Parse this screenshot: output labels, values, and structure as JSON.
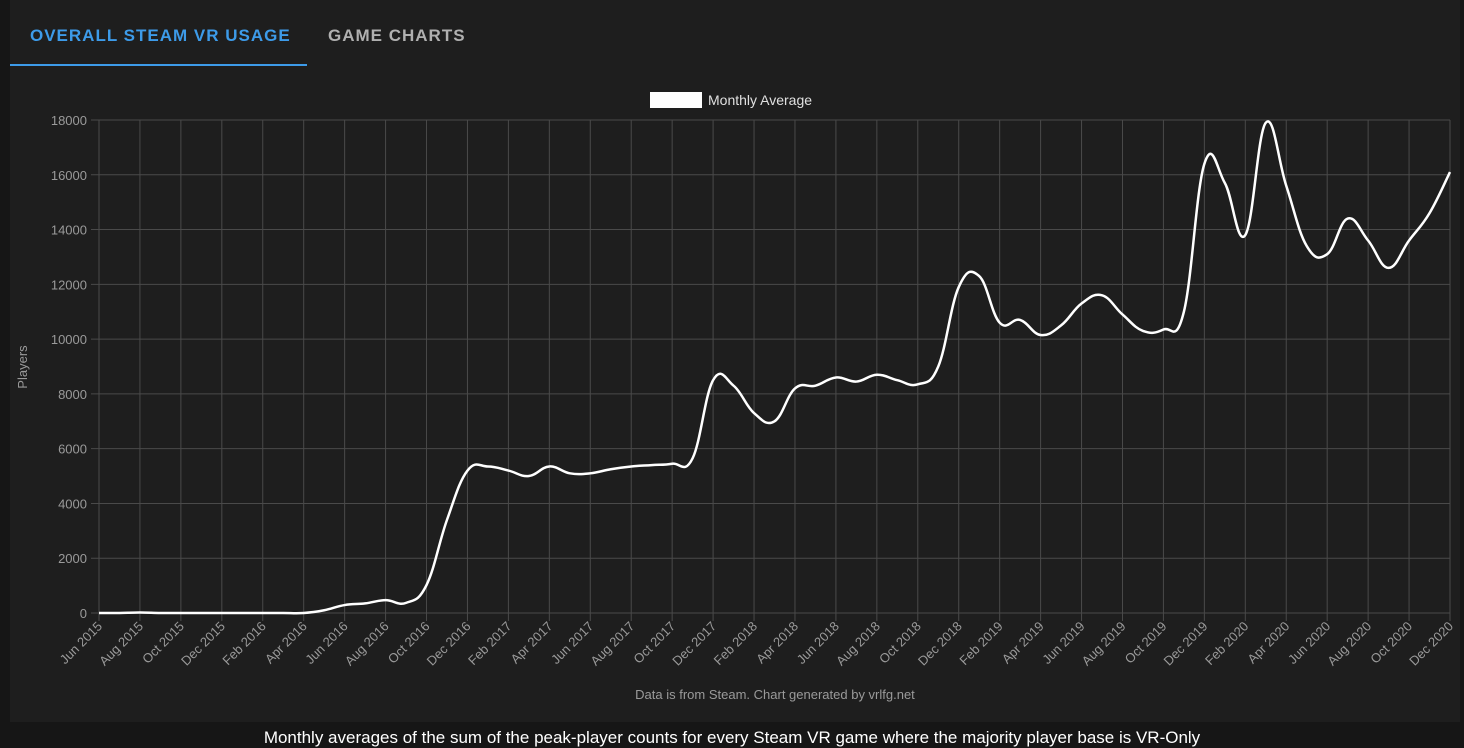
{
  "tabs": [
    "OVERALL STEAM VR USAGE",
    "GAME CHARTS"
  ],
  "caption": "Monthly averages of the sum of the peak-player counts for every Steam VR game where the majority player base is VR-Only",
  "chart_data": {
    "type": "line",
    "y_label": "Players",
    "footnote": "Data is from Steam.  Chart generated by vrlfg.net",
    "x": [
      "Jun 2015",
      null,
      "Aug 2015",
      null,
      "Oct 2015",
      null,
      "Dec 2015",
      null,
      "Feb 2016",
      null,
      "Apr 2016",
      null,
      "Jun 2016",
      null,
      "Aug 2016",
      null,
      "Oct 2016",
      null,
      "Dec 2016",
      null,
      "Feb 2017",
      null,
      "Apr 2017",
      null,
      "Jun 2017",
      null,
      "Aug 2017",
      null,
      "Oct 2017",
      null,
      "Dec 2017",
      null,
      "Feb 2018",
      null,
      "Apr 2018",
      null,
      "Jun 2018",
      null,
      "Aug 2018",
      null,
      "Oct 2018",
      null,
      "Dec 2018",
      null,
      "Feb 2019",
      null,
      "Apr 2019",
      null,
      "Jun 2019",
      null,
      "Aug 2019",
      null,
      "Oct 2019",
      null,
      "Dec 2019",
      null,
      "Feb 2020",
      null,
      "Apr 2020",
      null,
      "Jun 2020",
      null,
      "Aug 2020",
      null,
      "Oct 2020",
      null,
      "Dec 2020"
    ],
    "series": [
      {
        "name": "Monthly Average",
        "color": "#ffffff",
        "values": [
          0,
          0,
          20,
          0,
          0,
          0,
          0,
          0,
          0,
          0,
          0,
          100,
          290,
          350,
          470,
          370,
          1020,
          3400,
          5200,
          5350,
          5200,
          5000,
          5350,
          5100,
          5100,
          5250,
          5350,
          5400,
          5450,
          5650,
          8500,
          8300,
          7300,
          7000,
          8200,
          8300,
          8600,
          8450,
          8700,
          8500,
          8350,
          9000,
          11900,
          12300,
          10600,
          10700,
          10150,
          10500,
          11300,
          11600,
          10900,
          10300,
          10350,
          11000,
          16400,
          15700,
          13800,
          17900,
          15600,
          13400,
          13100,
          14400,
          13600,
          12600,
          13600,
          14600,
          16100
        ]
      }
    ],
    "ylim": [
      0,
      18000
    ],
    "yticks": [
      0,
      2000,
      4000,
      6000,
      8000,
      10000,
      12000,
      14000,
      16000,
      18000
    ],
    "grid": true
  }
}
